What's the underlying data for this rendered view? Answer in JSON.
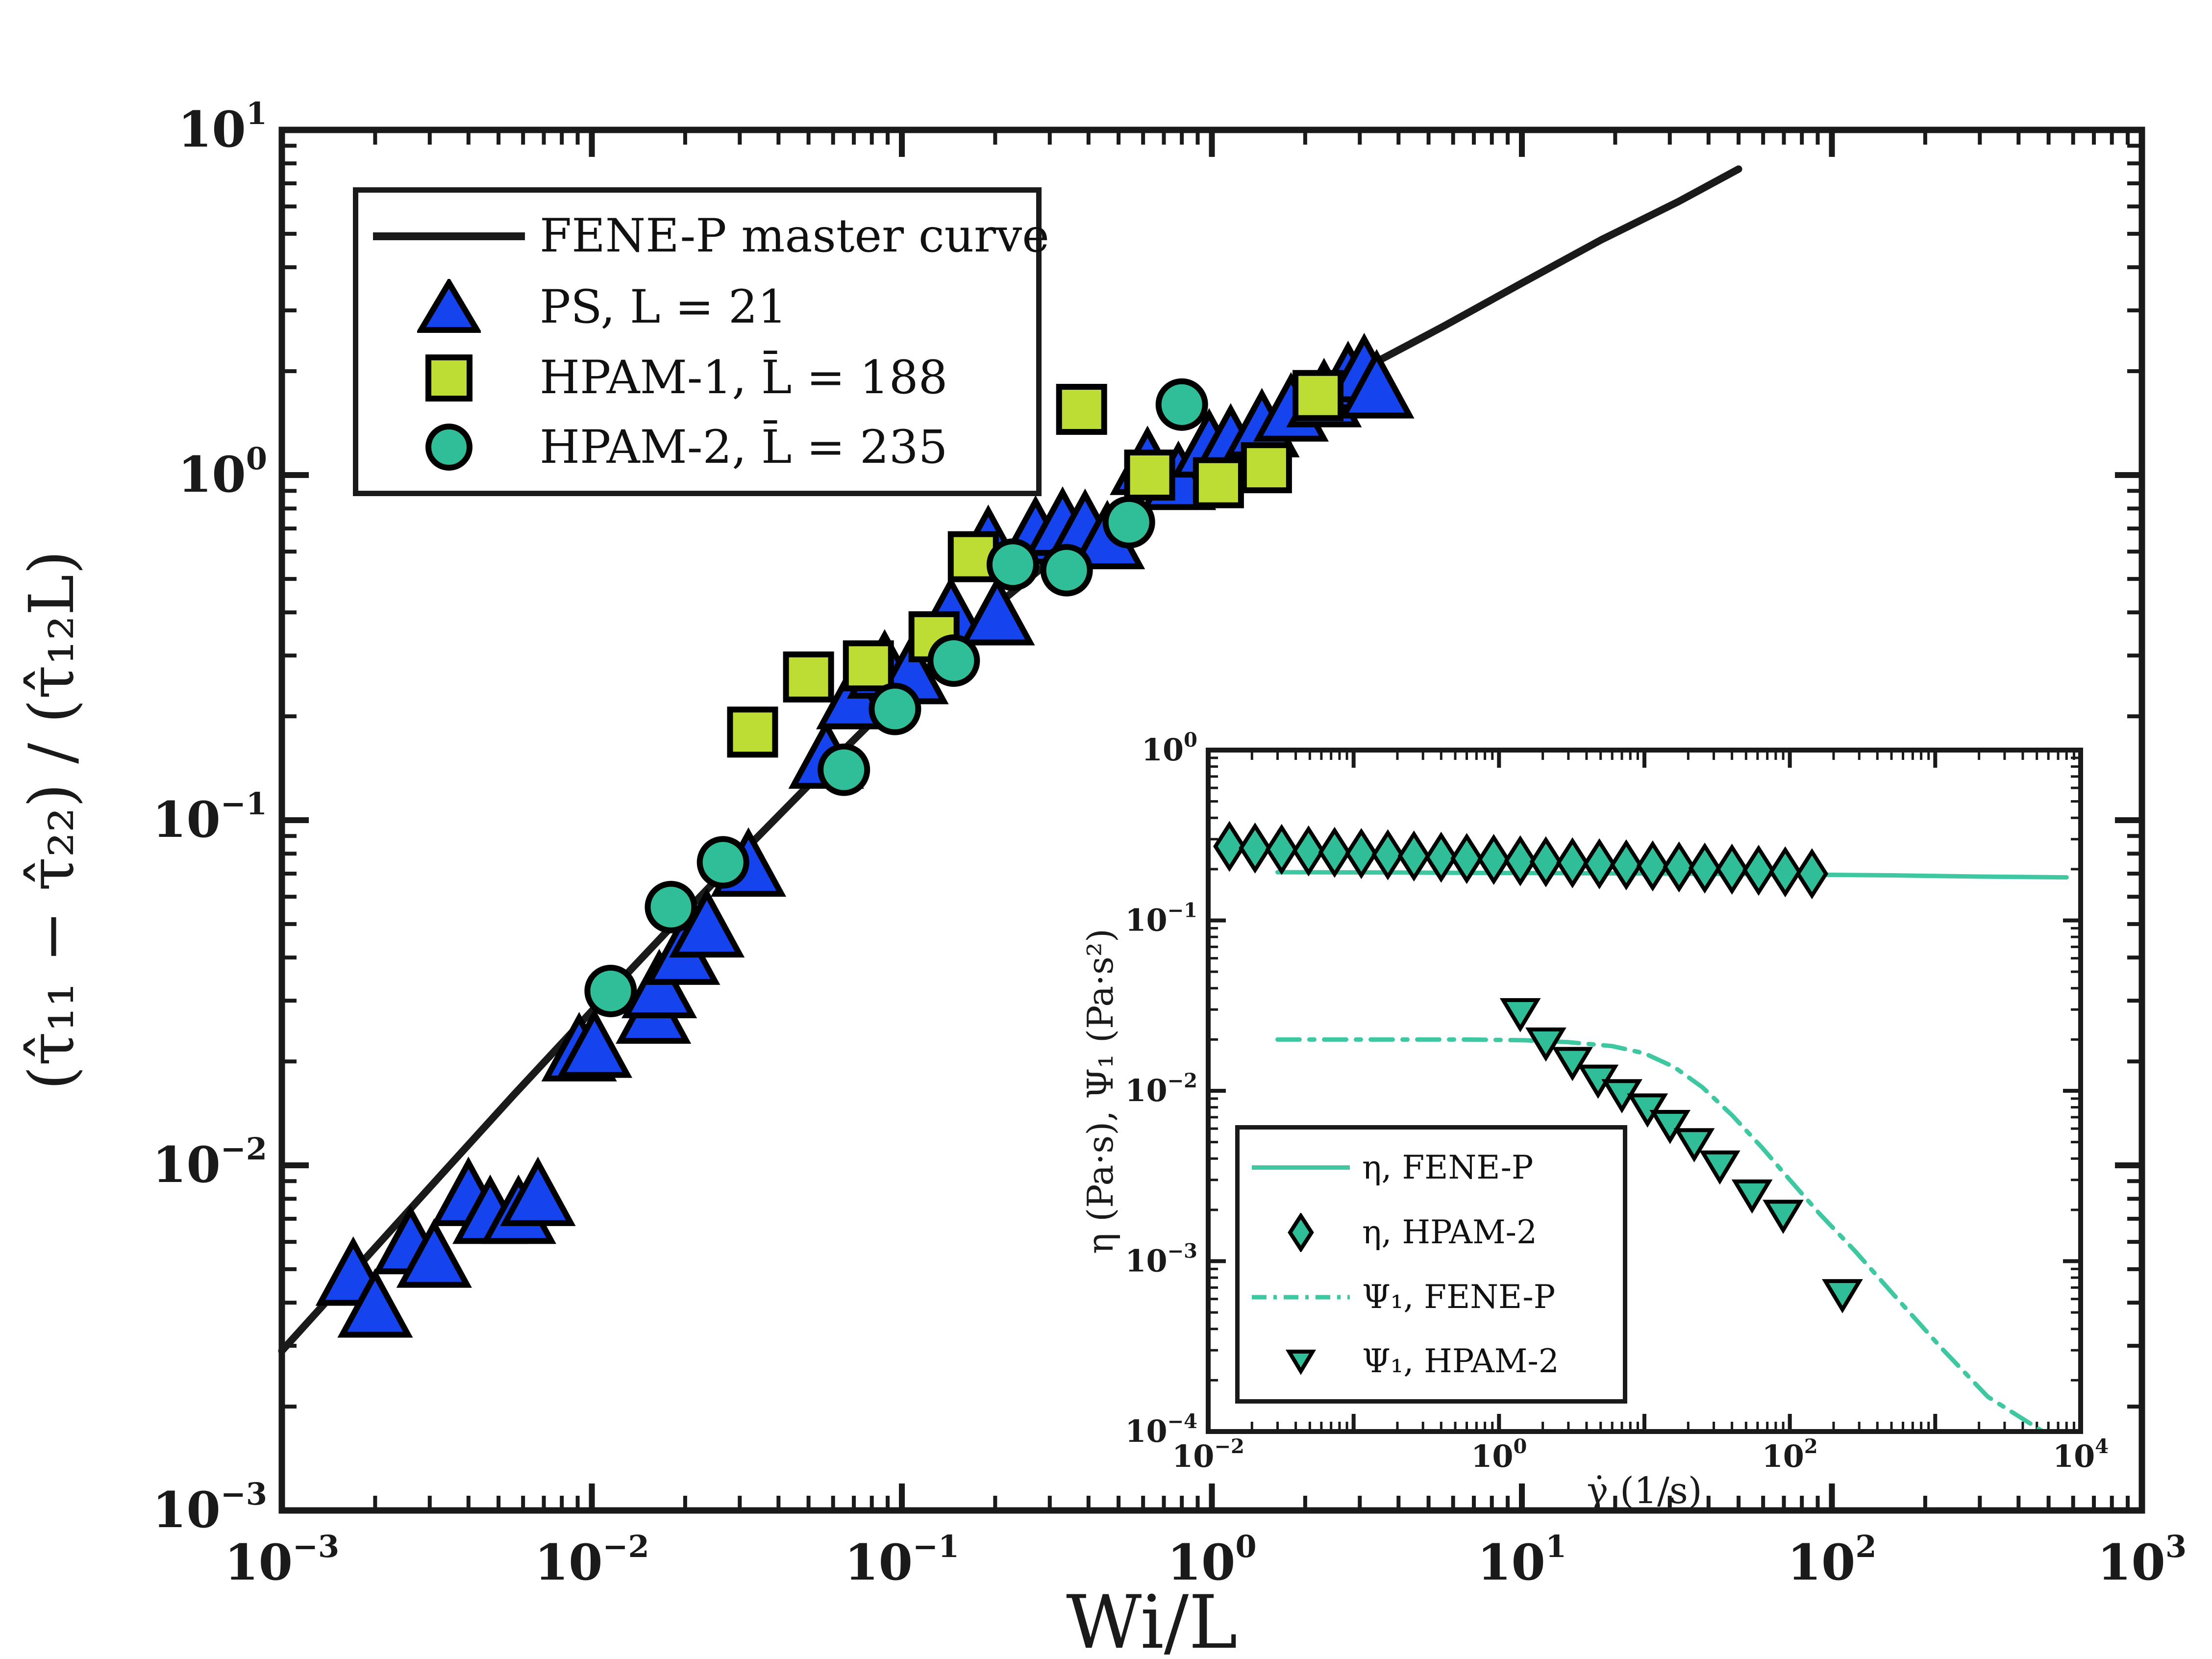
{
  "figure": {
    "background": "#ffffff",
    "axis_color": "#1a1a1a"
  },
  "colors": {
    "blue": "#1544ee",
    "green": "#bddc34",
    "teal": "#2fbe97",
    "teal_line": "#3ec7a0",
    "black": "#1a1a1a"
  },
  "chart_data": [
    {
      "type": "scatter",
      "title": "",
      "xlabel": "Wi/L",
      "ylabel": "(τ̂₁₁ − τ̂₂₂) / (τ̂₁₂L)",
      "xscale": "log",
      "yscale": "log",
      "xlim": [
        0.001,
        1000
      ],
      "ylim": [
        0.001,
        10
      ],
      "grid": false,
      "x_ticks": {
        "values": [
          0.001,
          0.01,
          0.1,
          1,
          10,
          100,
          1000
        ],
        "labels": [
          "−3",
          "−2",
          "−1",
          "0",
          "1",
          "2",
          "3"
        ]
      },
      "y_ticks": {
        "values": [
          10,
          1,
          0.1,
          0.01,
          0.001
        ],
        "labels": [
          "1",
          "0",
          "−1",
          "−2",
          "−3"
        ]
      },
      "legend": {
        "position": "top-left",
        "items": [
          {
            "marker": "line",
            "color": "#1a1a1a",
            "label": "FENE-P master curve"
          },
          {
            "marker": "triangle-up",
            "color": "#1544ee",
            "label": "PS, L = 21"
          },
          {
            "marker": "square",
            "color": "#bddc34",
            "label": "HPAM-1, L̄ = 188"
          },
          {
            "marker": "circle",
            "color": "#2fbe97",
            "label": "HPAM-2, L̄ = 235"
          }
        ]
      },
      "series": [
        {
          "name": "FENE-P master curve",
          "type": "line",
          "color": "#1a1a1a",
          "width": 15,
          "points": [
            [
              0.001,
              0.0029
            ],
            [
              0.0018,
              0.0052
            ],
            [
              0.0032,
              0.0092
            ],
            [
              0.0056,
              0.016
            ],
            [
              0.01,
              0.028
            ],
            [
              0.018,
              0.049
            ],
            [
              0.032,
              0.084
            ],
            [
              0.056,
              0.14
            ],
            [
              0.1,
              0.235
            ],
            [
              0.18,
              0.385
            ],
            [
              0.32,
              0.59
            ],
            [
              0.56,
              0.87
            ],
            [
              1.0,
              1.15
            ],
            [
              1.8,
              1.55
            ],
            [
              3.2,
              2.07
            ],
            [
              5.6,
              2.7
            ],
            [
              10,
              3.6
            ],
            [
              18,
              4.8
            ],
            [
              32,
              6.2
            ],
            [
              50,
              7.7
            ]
          ]
        },
        {
          "name": "PS, L = 21",
          "type": "scatter",
          "marker": "triangle-up",
          "color": "#1544ee",
          "points": [
            [
              0.0017,
              0.0047
            ],
            [
              0.002,
              0.0038
            ],
            [
              0.0026,
              0.0058
            ],
            [
              0.0031,
              0.0053
            ],
            [
              0.004,
              0.008
            ],
            [
              0.0047,
              0.0071
            ],
            [
              0.0058,
              0.0071
            ],
            [
              0.0067,
              0.008
            ],
            [
              0.0091,
              0.021
            ],
            [
              0.0102,
              0.0215
            ],
            [
              0.0158,
              0.027
            ],
            [
              0.0165,
              0.032
            ],
            [
              0.0196,
              0.04
            ],
            [
              0.0235,
              0.048
            ],
            [
              0.032,
              0.072
            ],
            [
              0.057,
              0.148
            ],
            [
              0.07,
              0.22
            ],
            [
              0.088,
              0.27
            ],
            [
              0.107,
              0.26
            ],
            [
              0.144,
              0.385
            ],
            [
              0.203,
              0.385
            ],
            [
              0.19,
              0.62
            ],
            [
              0.27,
              0.66
            ],
            [
              0.33,
              0.7
            ],
            [
              0.39,
              0.69
            ],
            [
              0.46,
              0.64
            ],
            [
              0.62,
              1.05
            ],
            [
              0.78,
              0.95
            ],
            [
              0.98,
              1.18
            ],
            [
              1.15,
              1.22
            ],
            [
              1.45,
              1.35
            ],
            [
              1.8,
              1.5
            ],
            [
              2.3,
              1.65
            ],
            [
              2.75,
              1.85
            ],
            [
              3.1,
              1.95
            ],
            [
              3.4,
              1.75
            ]
          ]
        },
        {
          "name": "HPAM-1, L̄ = 188",
          "type": "scatter",
          "marker": "square",
          "color": "#bddc34",
          "points": [
            [
              0.033,
              0.18
            ],
            [
              0.05,
              0.26
            ],
            [
              0.078,
              0.28
            ],
            [
              0.127,
              0.34
            ],
            [
              0.17,
              0.58
            ],
            [
              0.38,
              1.55
            ],
            [
              0.63,
              1.0
            ],
            [
              1.05,
              0.95
            ],
            [
              1.5,
              1.05
            ],
            [
              2.2,
              1.7
            ]
          ]
        },
        {
          "name": "HPAM-2, L̄ = 235",
          "type": "scatter",
          "marker": "circle",
          "color": "#2fbe97",
          "points": [
            [
              0.0115,
              0.032
            ],
            [
              0.018,
              0.056
            ],
            [
              0.0265,
              0.0755
            ],
            [
              0.065,
              0.14
            ],
            [
              0.095,
              0.21
            ],
            [
              0.147,
              0.29
            ],
            [
              0.228,
              0.55
            ],
            [
              0.34,
              0.53
            ],
            [
              0.54,
              0.73
            ],
            [
              0.8,
              1.6
            ]
          ]
        }
      ]
    },
    {
      "type": "scatter",
      "title": "",
      "xlabel": "γ̇ (1/s)",
      "ylabel": "η (Pa·s), Ψ₁ (Pa·s²)",
      "xscale": "log",
      "yscale": "log",
      "xlim": [
        0.01,
        10000
      ],
      "ylim": [
        0.0001,
        1
      ],
      "grid": false,
      "x_ticks": {
        "values": [
          0.01,
          1,
          100,
          10000
        ],
        "labels": [
          "−2",
          "0",
          "2",
          "4"
        ]
      },
      "y_ticks": {
        "values": [
          1,
          0.1,
          0.01,
          0.001,
          0.0001
        ],
        "labels": [
          "0",
          "−1",
          "−2",
          "−3",
          "−4"
        ]
      },
      "legend": {
        "position": "bottom-left",
        "items": [
          {
            "marker": "line",
            "color": "#3ec7a0",
            "label": "η, FENE-P"
          },
          {
            "marker": "diamond",
            "color": "#2fbe97",
            "label": "η, HPAM-2"
          },
          {
            "marker": "line-dashdot",
            "color": "#3ec7a0",
            "label": "Ψ₁, FENE-P"
          },
          {
            "marker": "triangle-down",
            "color": "#2fbe97",
            "label": "Ψ₁, HPAM-2"
          }
        ]
      },
      "series": [
        {
          "name": "η, FENE-P",
          "type": "line",
          "color": "#3ec7a0",
          "width": 9,
          "points": [
            [
              0.03,
              0.192
            ],
            [
              0.2,
              0.191
            ],
            [
              1,
              0.19
            ],
            [
              5,
              0.189
            ],
            [
              20,
              0.188
            ],
            [
              100,
              0.186
            ],
            [
              500,
              0.184
            ],
            [
              2000,
              0.181
            ],
            [
              8000,
              0.179
            ]
          ]
        },
        {
          "name": "Ψ₁, FENE-P",
          "type": "line",
          "dash": "dashdot",
          "color": "#3ec7a0",
          "width": 9,
          "points": [
            [
              0.03,
              0.02
            ],
            [
              0.2,
              0.02
            ],
            [
              0.6,
              0.02
            ],
            [
              1.5,
              0.0198
            ],
            [
              3,
              0.0193
            ],
            [
              6,
              0.0183
            ],
            [
              10,
              0.0166
            ],
            [
              16,
              0.0138
            ],
            [
              25,
              0.0105
            ],
            [
              40,
              0.0072
            ],
            [
              65,
              0.0046
            ],
            [
              100,
              0.003
            ],
            [
              160,
              0.0019
            ],
            [
              280,
              0.00115
            ],
            [
              550,
              0.0006
            ],
            [
              1100,
              0.00031
            ],
            [
              2300,
              0.00016
            ],
            [
              5500,
              0.0001
            ]
          ]
        },
        {
          "name": "η, HPAM-2",
          "type": "scatter",
          "marker": "diamond",
          "color": "#2fbe97",
          "points": [
            [
              0.014,
              0.272
            ],
            [
              0.021,
              0.266
            ],
            [
              0.032,
              0.261
            ],
            [
              0.049,
              0.256
            ],
            [
              0.074,
              0.251
            ],
            [
              0.113,
              0.247
            ],
            [
              0.172,
              0.243
            ],
            [
              0.26,
              0.239
            ],
            [
              0.4,
              0.235
            ],
            [
              0.6,
              0.231
            ],
            [
              0.92,
              0.228
            ],
            [
              1.4,
              0.224
            ],
            [
              2.1,
              0.221
            ],
            [
              3.2,
              0.218
            ],
            [
              4.9,
              0.215
            ],
            [
              7.5,
              0.212
            ],
            [
              11.4,
              0.209
            ],
            [
              17.3,
              0.206
            ],
            [
              26,
              0.203
            ],
            [
              40,
              0.2
            ],
            [
              61,
              0.197
            ],
            [
              93,
              0.193
            ],
            [
              142,
              0.188
            ]
          ]
        },
        {
          "name": "Ψ₁, HPAM-2",
          "type": "scatter",
          "marker": "triangle-down",
          "color": "#2fbe97",
          "points": [
            [
              1.4,
              0.029
            ],
            [
              2.1,
              0.0195
            ],
            [
              3.2,
              0.015
            ],
            [
              4.8,
              0.0118
            ],
            [
              7.0,
              0.0097
            ],
            [
              10.5,
              0.008
            ],
            [
              15,
              0.0064
            ],
            [
              22,
              0.005
            ],
            [
              33,
              0.0037
            ],
            [
              55,
              0.0025
            ],
            [
              90,
              0.0019
            ],
            [
              230,
              0.00065
            ]
          ]
        }
      ]
    }
  ]
}
